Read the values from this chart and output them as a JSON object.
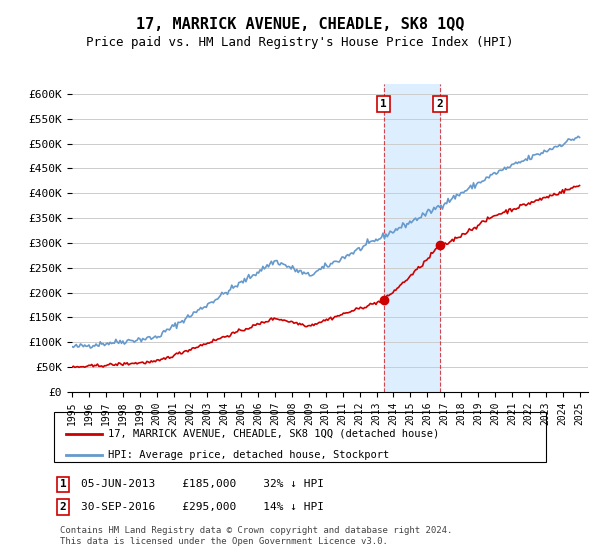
{
  "title": "17, MARRICK AVENUE, CHEADLE, SK8 1QQ",
  "subtitle": "Price paid vs. HM Land Registry's House Price Index (HPI)",
  "ylabel_ticks": [
    "£0",
    "£50K",
    "£100K",
    "£150K",
    "£200K",
    "£250K",
    "£300K",
    "£350K",
    "£400K",
    "£450K",
    "£500K",
    "£550K",
    "£600K"
  ],
  "ytick_values": [
    0,
    50000,
    100000,
    150000,
    200000,
    250000,
    300000,
    350000,
    400000,
    450000,
    500000,
    550000,
    600000
  ],
  "ylim": [
    0,
    620000
  ],
  "xlim_start": 1995.0,
  "xlim_end": 2025.5,
  "sale1_date": 2013.42,
  "sale1_price": 185000,
  "sale1_label": "1",
  "sale1_text": "05-JUN-2013    £185,000    32% ↓ HPI",
  "sale2_date": 2016.75,
  "sale2_price": 295000,
  "sale2_label": "2",
  "sale2_text": "30-SEP-2016    £295,000    14% ↓ HPI",
  "legend_line1": "17, MARRICK AVENUE, CHEADLE, SK8 1QQ (detached house)",
  "legend_line2": "HPI: Average price, detached house, Stockport",
  "footnote": "Contains HM Land Registry data © Crown copyright and database right 2024.\nThis data is licensed under the Open Government Licence v3.0.",
  "line_color_red": "#cc0000",
  "line_color_blue": "#6699cc",
  "highlight_fill": "#ddeeff",
  "marker_color_red": "#cc0000",
  "grid_color": "#cccccc",
  "background_color": "#ffffff",
  "sale_box_color": "#cc0000"
}
